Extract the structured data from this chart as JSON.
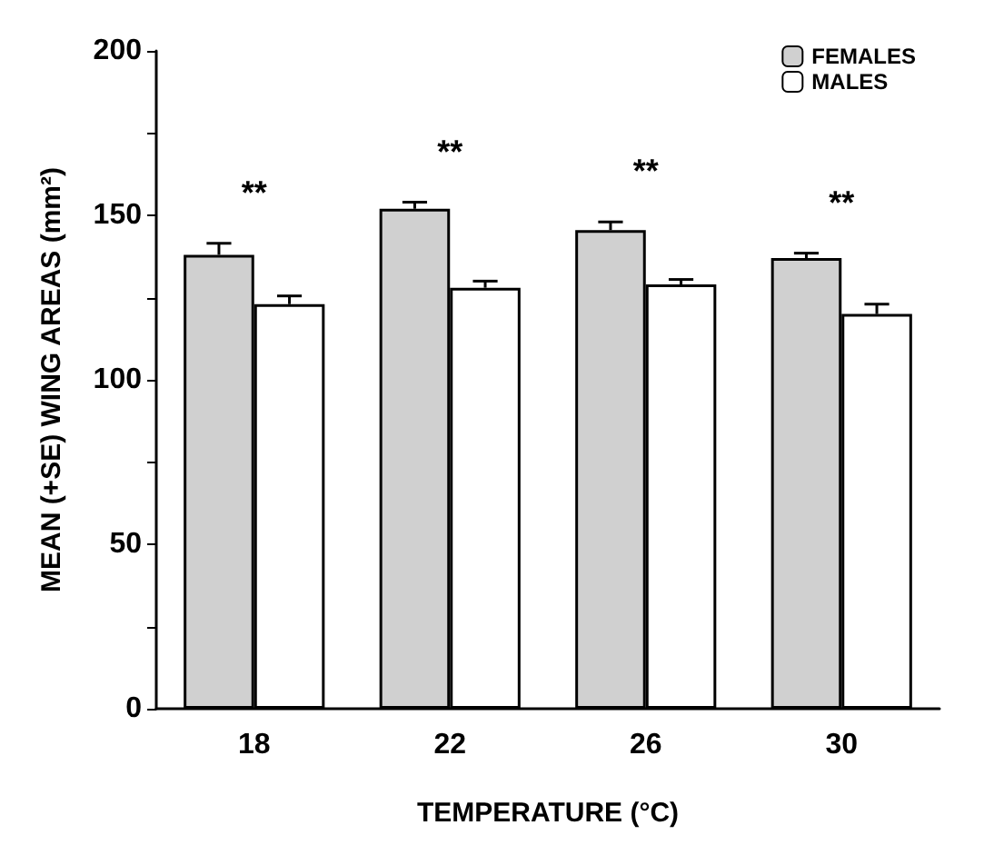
{
  "chart_data": {
    "type": "bar",
    "xlabel": "TEMPERATURE (°C)",
    "ylabel": "MEAN (+SE) WING AREAS (mm²)",
    "categories": [
      "18",
      "22",
      "26",
      "30"
    ],
    "series": [
      {
        "name": "FEMALES",
        "color": "#d0d0d0",
        "values": [
          138,
          152,
          145.5,
          137
        ],
        "errors": [
          [
            138,
            141.5
          ],
          [
            152,
            154
          ],
          [
            145.5,
            148
          ],
          [
            137,
            138.5
          ]
        ]
      },
      {
        "name": "MALES",
        "color": "#ffffff",
        "values": [
          123,
          128,
          129,
          120
        ],
        "errors": [
          [
            123,
            125.5
          ],
          [
            128,
            130
          ],
          [
            129,
            130.5
          ],
          [
            120,
            123
          ]
        ]
      }
    ],
    "ylim": [
      0,
      200
    ],
    "yticks": [
      0,
      {
        "value": 25,
        "label": null
      },
      50,
      {
        "value": 75,
        "label": null
      },
      100,
      {
        "value": 125,
        "label": null
      },
      150,
      {
        "value": 175,
        "label": null
      },
      200
    ],
    "annotations": [
      "**",
      "**",
      "**",
      "**"
    ],
    "grid": false,
    "legend": "top right"
  }
}
